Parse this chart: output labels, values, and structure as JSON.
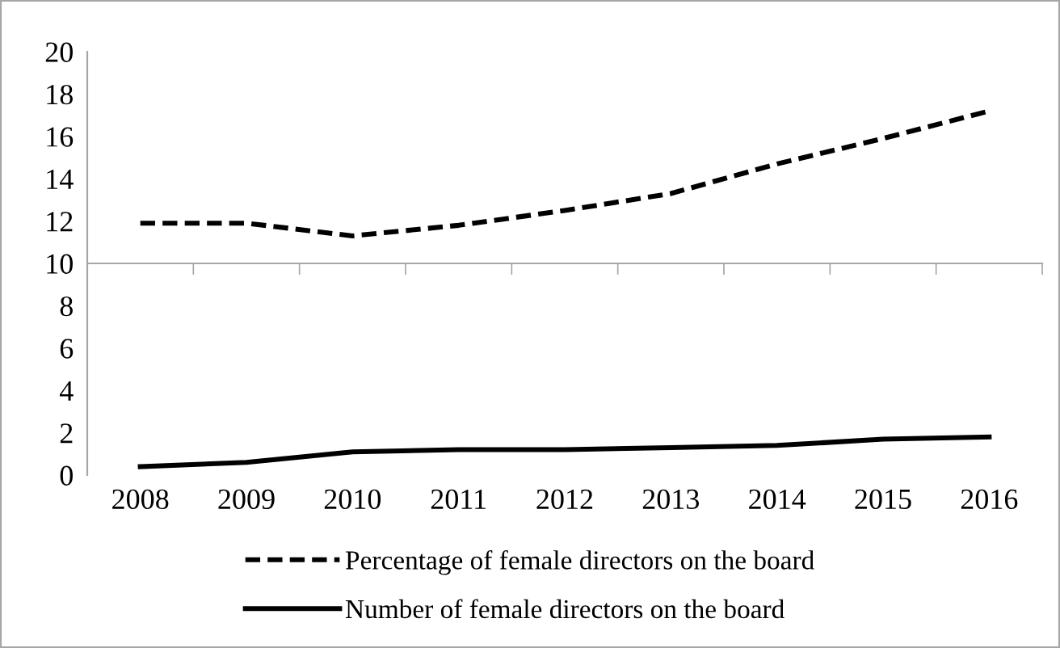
{
  "chart_data": {
    "type": "line",
    "categories": [
      "2008",
      "2009",
      "2010",
      "2011",
      "2012",
      "2013",
      "2014",
      "2015",
      "2016"
    ],
    "series": [
      {
        "name": "Percentage of female directors on the board",
        "color": "#000000",
        "line_style": "dashed",
        "values": [
          11.9,
          11.9,
          11.3,
          11.8,
          12.5,
          13.3,
          14.7,
          15.9,
          17.2
        ]
      },
      {
        "name": "Number of female directors on the board",
        "color": "#000000",
        "line_style": "solid",
        "values": [
          0.4,
          0.6,
          1.1,
          1.2,
          1.2,
          1.3,
          1.4,
          1.7,
          1.8
        ]
      }
    ],
    "ylim": [
      0,
      20
    ],
    "yticks": [
      0,
      2,
      4,
      6,
      8,
      10,
      12,
      14,
      16,
      18,
      20
    ],
    "ref_lines": [
      {
        "axis": "y",
        "value": 10,
        "color": "#a6a6a6"
      }
    ],
    "grid": false,
    "legend": "bottom",
    "marker": "none"
  }
}
